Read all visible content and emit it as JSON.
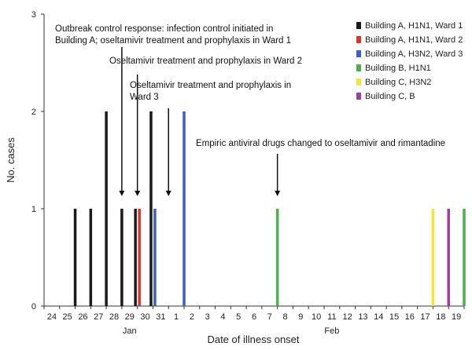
{
  "chart_data": {
    "type": "bar",
    "xlabel": "Date of illness onset",
    "ylabel": "No. cases",
    "ylim": [
      0,
      3
    ],
    "yticks": [
      "0",
      "1",
      "2",
      "3"
    ],
    "grid": false,
    "legend_placement": "top-right",
    "month_labels": [
      {
        "label": "Jan",
        "at_day": "29"
      },
      {
        "label": "Feb",
        "at_day": "11"
      }
    ],
    "categories": [
      "24",
      "25",
      "26",
      "27",
      "28",
      "29",
      "30",
      "31",
      "1",
      "2",
      "3",
      "4",
      "5",
      "6",
      "7",
      "8",
      "9",
      "10",
      "11",
      "12",
      "13",
      "14",
      "15",
      "16",
      "17",
      "18",
      "19"
    ],
    "series": [
      {
        "name": "Building A, H1N1, Ward 1",
        "color": "#1a1a1a",
        "points": [
          {
            "day": "25",
            "value": 1
          },
          {
            "day": "26",
            "value": 1
          },
          {
            "day": "27",
            "value": 2
          },
          {
            "day": "28",
            "value": 1
          },
          {
            "day": "29",
            "value": 1
          },
          {
            "day": "30",
            "value": 2
          }
        ]
      },
      {
        "name": "Building A, H1N1, Ward 2",
        "color": "#e0322a",
        "points": [
          {
            "day": "29",
            "value": 1
          }
        ]
      },
      {
        "name": "Building A, H3N2, Ward 3",
        "color": "#3a5fbf",
        "points": [
          {
            "day": "30",
            "value": 1
          },
          {
            "day": "1",
            "value": 2
          }
        ]
      },
      {
        "name": "Building B, H1N1",
        "color": "#4caf50",
        "points": [
          {
            "day": "7",
            "value": 1
          },
          {
            "day": "19",
            "value": 1
          }
        ]
      },
      {
        "name": "Building C, H3N2",
        "color": "#f2e63a",
        "points": [
          {
            "day": "17",
            "value": 1
          }
        ]
      },
      {
        "name": "Building C, B",
        "color": "#9b3fa3",
        "points": [
          {
            "day": "18",
            "value": 1
          }
        ]
      }
    ],
    "annotations": [
      {
        "lines": [
          "Outbreak control response: infection control initiated in",
          "Building A; oseltamivir treatment and prophylaxis in Ward 1"
        ],
        "arrow_day": "28"
      },
      {
        "lines": [
          "Oseltamivir treatment and prophylaxis in Ward 2"
        ],
        "arrow_day": "29"
      },
      {
        "lines": [
          "Oseltamivir treatment and prophylaxis in",
          "Ward 3"
        ],
        "arrow_day": "31"
      },
      {
        "lines": [
          "Empiric antiviral drugs changed to oseltamivir and rimantadine"
        ],
        "arrow_day": "7"
      }
    ]
  }
}
